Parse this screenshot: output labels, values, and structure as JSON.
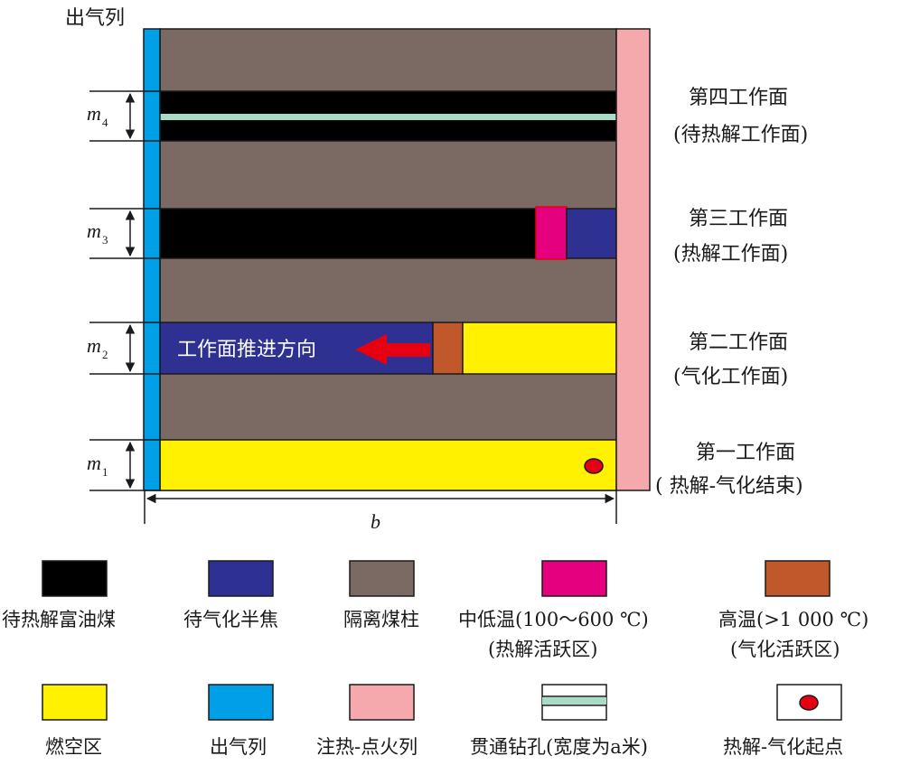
{
  "top_label": "出气列",
  "colors": {
    "coal_pillar": "#7a6a63",
    "rich_oil_coal": "#000000",
    "semi_coke": "#2e3192",
    "mid_low_temp": "#e4007f",
    "high_temp": "#c1582b",
    "burnt_zone": "#fff100",
    "outlet": "#00a0e9",
    "injection": "#f5a9ad",
    "borehole": "#a8dcc7",
    "ignition": "#e60012",
    "arrow": "#e60012"
  },
  "thickness_labels": [
    {
      "id": "m4",
      "var": "m",
      "sub": "4"
    },
    {
      "id": "m3",
      "var": "m",
      "sub": "3"
    },
    {
      "id": "m2",
      "var": "m",
      "sub": "2"
    },
    {
      "id": "m1",
      "var": "m",
      "sub": "1"
    }
  ],
  "width_label": "b",
  "advance_label": "工作面推进方向",
  "faces": [
    {
      "line1": "第四工作面",
      "line2": "(待热解工作面)"
    },
    {
      "line1": "第三工作面",
      "line2": "(热解工作面)"
    },
    {
      "line1": "第二工作面",
      "line2": "(气化工作面)"
    },
    {
      "line1": "第一工作面",
      "line2": "( 热解-气化结束)"
    }
  ],
  "legend": [
    {
      "key": "rich_oil_coal",
      "lines": [
        "待热解富油煤"
      ]
    },
    {
      "key": "semi_coke",
      "lines": [
        "待气化半焦"
      ]
    },
    {
      "key": "coal_pillar",
      "lines": [
        "隔离煤柱"
      ]
    },
    {
      "key": "mid_low_temp",
      "lines": [
        "中低温(100～600 ℃)",
        "(热解活跃区)"
      ]
    },
    {
      "key": "high_temp",
      "lines": [
        "高温(>1 000 ℃)",
        "(气化活跃区)"
      ]
    },
    {
      "key": "burnt_zone",
      "lines": [
        "燃空区"
      ]
    },
    {
      "key": "outlet",
      "lines": [
        "出气列"
      ]
    },
    {
      "key": "injection",
      "lines": [
        "注热-点火列"
      ]
    },
    {
      "key": "borehole",
      "lines": [
        "贯通钻孔(宽度为a米)"
      ]
    },
    {
      "key": "ignition",
      "lines": [
        "热解-气化起点"
      ]
    }
  ]
}
